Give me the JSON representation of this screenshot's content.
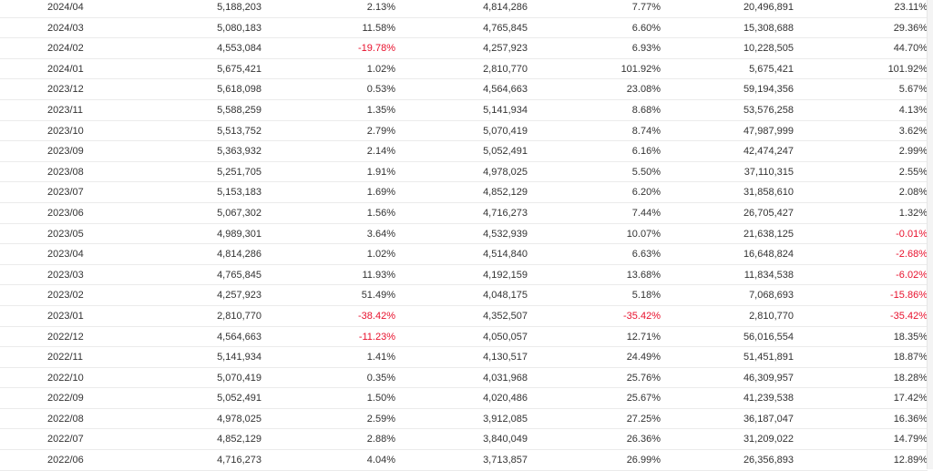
{
  "colors": {
    "negative": "#e8112d",
    "text": "#333333"
  },
  "rows": [
    [
      "2024/04",
      "5,188,203",
      "2.13%",
      "4,814,286",
      "7.77%",
      "20,496,891",
      "23.11%"
    ],
    [
      "2024/03",
      "5,080,183",
      "11.58%",
      "4,765,845",
      "6.60%",
      "15,308,688",
      "29.36%"
    ],
    [
      "2024/02",
      "4,553,084",
      "-19.78%",
      "4,257,923",
      "6.93%",
      "10,228,505",
      "44.70%"
    ],
    [
      "2024/01",
      "5,675,421",
      "1.02%",
      "2,810,770",
      "101.92%",
      "5,675,421",
      "101.92%"
    ],
    [
      "2023/12",
      "5,618,098",
      "0.53%",
      "4,564,663",
      "23.08%",
      "59,194,356",
      "5.67%"
    ],
    [
      "2023/11",
      "5,588,259",
      "1.35%",
      "5,141,934",
      "8.68%",
      "53,576,258",
      "4.13%"
    ],
    [
      "2023/10",
      "5,513,752",
      "2.79%",
      "5,070,419",
      "8.74%",
      "47,987,999",
      "3.62%"
    ],
    [
      "2023/09",
      "5,363,932",
      "2.14%",
      "5,052,491",
      "6.16%",
      "42,474,247",
      "2.99%"
    ],
    [
      "2023/08",
      "5,251,705",
      "1.91%",
      "4,978,025",
      "5.50%",
      "37,110,315",
      "2.55%"
    ],
    [
      "2023/07",
      "5,153,183",
      "1.69%",
      "4,852,129",
      "6.20%",
      "31,858,610",
      "2.08%"
    ],
    [
      "2023/06",
      "5,067,302",
      "1.56%",
      "4,716,273",
      "7.44%",
      "26,705,427",
      "1.32%"
    ],
    [
      "2023/05",
      "4,989,301",
      "3.64%",
      "4,532,939",
      "10.07%",
      "21,638,125",
      "-0.01%"
    ],
    [
      "2023/04",
      "4,814,286",
      "1.02%",
      "4,514,840",
      "6.63%",
      "16,648,824",
      "-2.68%"
    ],
    [
      "2023/03",
      "4,765,845",
      "11.93%",
      "4,192,159",
      "13.68%",
      "11,834,538",
      "-6.02%"
    ],
    [
      "2023/02",
      "4,257,923",
      "51.49%",
      "4,048,175",
      "5.18%",
      "7,068,693",
      "-15.86%"
    ],
    [
      "2023/01",
      "2,810,770",
      "-38.42%",
      "4,352,507",
      "-35.42%",
      "2,810,770",
      "-35.42%"
    ],
    [
      "2022/12",
      "4,564,663",
      "-11.23%",
      "4,050,057",
      "12.71%",
      "56,016,554",
      "18.35%"
    ],
    [
      "2022/11",
      "5,141,934",
      "1.41%",
      "4,130,517",
      "24.49%",
      "51,451,891",
      "18.87%"
    ],
    [
      "2022/10",
      "5,070,419",
      "0.35%",
      "4,031,968",
      "25.76%",
      "46,309,957",
      "18.28%"
    ],
    [
      "2022/09",
      "5,052,491",
      "1.50%",
      "4,020,486",
      "25.67%",
      "41,239,538",
      "17.42%"
    ],
    [
      "2022/08",
      "4,978,025",
      "2.59%",
      "3,912,085",
      "27.25%",
      "36,187,047",
      "16.36%"
    ],
    [
      "2022/07",
      "4,852,129",
      "2.88%",
      "3,840,049",
      "26.36%",
      "31,209,022",
      "14.79%"
    ],
    [
      "2022/06",
      "4,716,273",
      "4.04%",
      "3,713,857",
      "26.99%",
      "26,356,893",
      "12.89%"
    ]
  ]
}
